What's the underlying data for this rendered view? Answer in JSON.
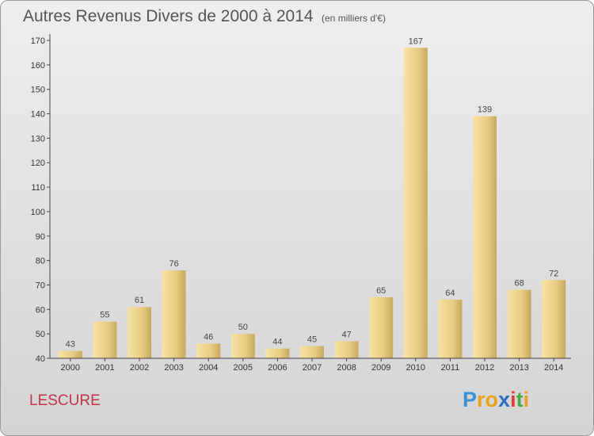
{
  "title": "Autres Revenus Divers de 2000 à 2014",
  "unit": "(en milliers d'€)",
  "place": "LESCURE",
  "logo": {
    "letters": [
      "P",
      "r",
      "o",
      "x",
      "i",
      "t",
      "i"
    ],
    "colors": [
      "#3a8fd0",
      "#e8a21a",
      "#e8a21a",
      "#2a6fc0",
      "#e03c3c",
      "#4aa84a",
      "#e8a21a"
    ]
  },
  "colors": {
    "bar_light": "#f4dd9a",
    "bar_dark": "#c8a860",
    "place": "#c0344a"
  },
  "chart_data": {
    "type": "bar",
    "title": "Autres Revenus Divers de 2000 à 2014",
    "categories": [
      "2000",
      "2001",
      "2002",
      "2003",
      "2004",
      "2005",
      "2006",
      "2007",
      "2008",
      "2009",
      "2010",
      "2011",
      "2012",
      "2013",
      "2014"
    ],
    "values": [
      43,
      55,
      61,
      76,
      46,
      50,
      44,
      45,
      47,
      65,
      167,
      64,
      139,
      68,
      72
    ],
    "ylim": [
      40,
      170
    ],
    "yticks": [
      40,
      50,
      60,
      70,
      80,
      90,
      100,
      110,
      120,
      130,
      140,
      150,
      160,
      170
    ],
    "grid": false,
    "data_labels": true
  }
}
